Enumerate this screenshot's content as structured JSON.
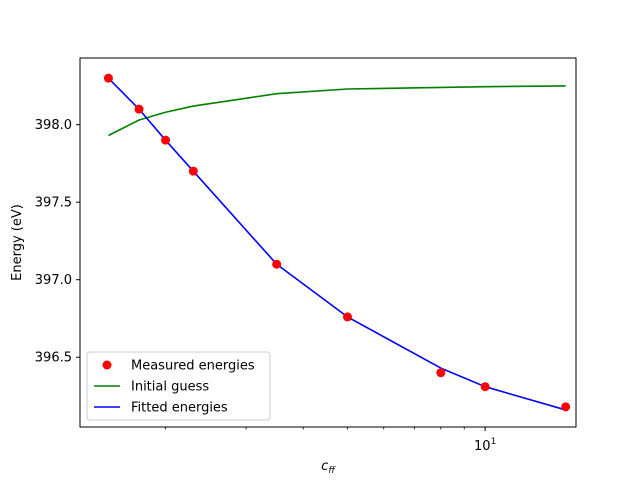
{
  "chart_data": {
    "type": "line",
    "xlabel_main": "c",
    "xlabel_sub": "ff",
    "ylabel": "Energy (eV)",
    "xscale": "log",
    "xlim": [
      1.3,
      15.8
    ],
    "ylim": [
      396.05,
      398.43
    ],
    "x_ticks": [
      {
        "value": 10,
        "base": "10",
        "exp": "1"
      }
    ],
    "x_minor_ticks": [
      2,
      3,
      4,
      5,
      6,
      7,
      8,
      9
    ],
    "y_ticks": [
      {
        "value": 396.5,
        "label": "396.5"
      },
      {
        "value": 397.0,
        "label": "397.0"
      },
      {
        "value": 397.5,
        "label": "397.5"
      },
      {
        "value": 398.0,
        "label": "398.0"
      }
    ],
    "grid": false,
    "legend_position": "lower-left",
    "series": [
      {
        "name": "Measured energies",
        "kind": "scatter",
        "color": "#ff0000",
        "x": [
          1.5,
          1.75,
          2.0,
          2.3,
          3.5,
          5.0,
          8.0,
          10.0,
          15.0
        ],
        "y": [
          398.3,
          398.1,
          397.9,
          397.7,
          397.1,
          396.76,
          396.4,
          396.31,
          396.18
        ]
      },
      {
        "name": "Initial guess",
        "kind": "line",
        "color": "#008000",
        "x": [
          1.5,
          1.75,
          2.0,
          2.3,
          3.5,
          5.0,
          8.0,
          10.0,
          15.0
        ],
        "y": [
          397.93,
          398.03,
          398.08,
          398.12,
          398.2,
          398.23,
          398.24,
          398.245,
          398.25
        ]
      },
      {
        "name": "Fitted energies",
        "kind": "line",
        "color": "#0000ff",
        "x": [
          1.5,
          1.75,
          2.0,
          2.3,
          3.5,
          5.0,
          8.0,
          10.0,
          15.0
        ],
        "y": [
          398.3,
          398.1,
          397.9,
          397.7,
          397.1,
          396.76,
          396.43,
          396.31,
          396.16
        ]
      }
    ]
  }
}
